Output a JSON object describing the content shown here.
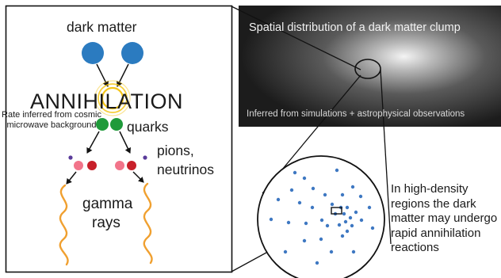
{
  "clump_panel": {
    "title": "Spatial distribution of a dark matter clump",
    "subtitle": "Inferred from simulations + astrophysical observations"
  },
  "annihilation_panel": {
    "dark_matter_label": "dark matter",
    "annihilation_label": "ANNIHILATION",
    "rate_note": "Rate inferred from cosmic microwave background",
    "quarks_label": "quarks",
    "pions_label": "pions,",
    "neutrinos_label": "neutrinos",
    "gamma_label": "gamma",
    "rays_label": "rays"
  },
  "zoom_description": "In high-density regions the dark matter may undergo rapid annihilation reactions",
  "colors": {
    "dark_matter_particle": "#2b7bc0",
    "quark": "#1f9a3a",
    "pion_pink": "#f2748a",
    "pion_red": "#c8202a",
    "neutrino": "#5a3b9a",
    "gamma_ray": "#f0a030",
    "annihilation_glow": "#f5c518",
    "scatter_point": "#3e78c2"
  }
}
